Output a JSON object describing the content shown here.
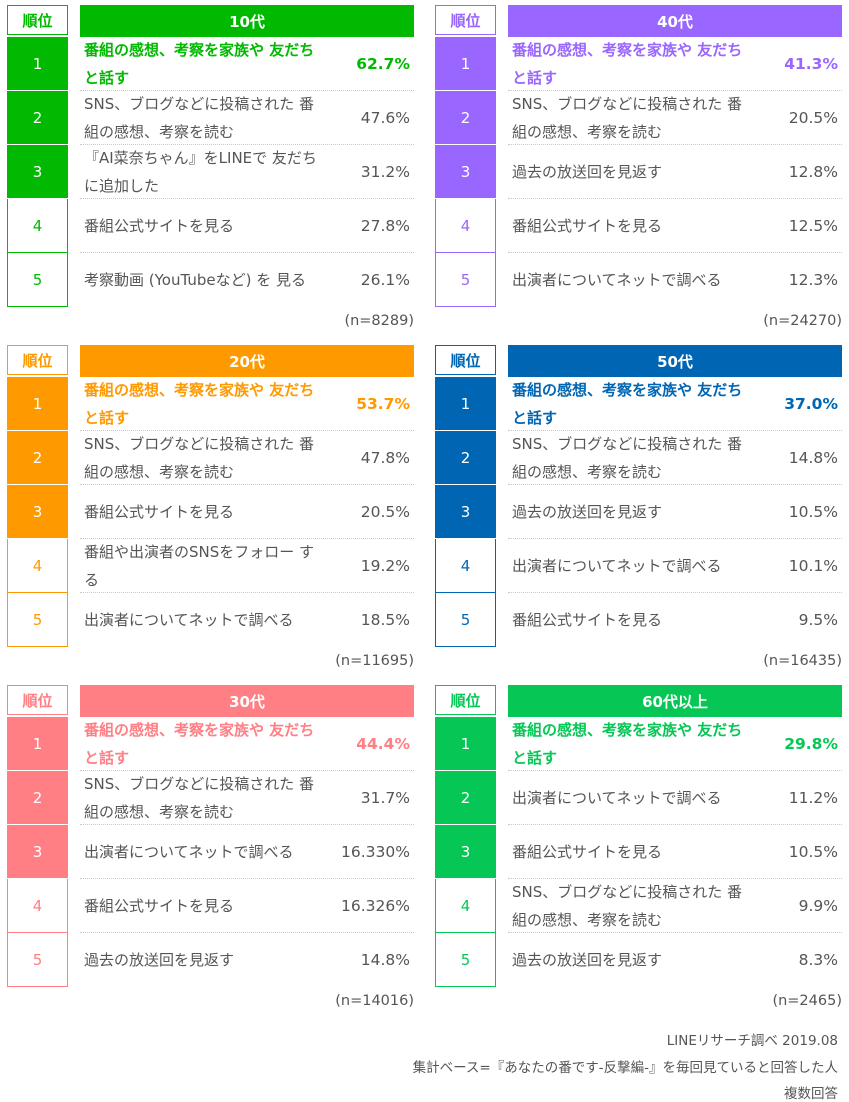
{
  "chart_data": [
    {
      "type": "table",
      "rank_header": "順位",
      "title": "10代",
      "color": "#00b900",
      "n": "(n=8289)",
      "rows": [
        {
          "rank": "1",
          "label": "番組の感想、考察を家族や 友だちと話す",
          "value": "62.7%"
        },
        {
          "rank": "2",
          "label": "SNS、ブログなどに投稿された 番組の感想、考察を読む",
          "value": "47.6%"
        },
        {
          "rank": "3",
          "label": "『AI菜奈ちゃん』をLINEで 友だちに追加した",
          "value": "31.2%"
        },
        {
          "rank": "4",
          "label": "番組公式サイトを見る",
          "value": "27.8%"
        },
        {
          "rank": "5",
          "label": "考察動画 (YouTubeなど) を 見る",
          "value": "26.1%"
        }
      ]
    },
    {
      "type": "table",
      "rank_header": "順位",
      "title": "40代",
      "color": "#9966ff",
      "n": "(n=24270)",
      "rows": [
        {
          "rank": "1",
          "label": "番組の感想、考察を家族や 友だちと話す",
          "value": "41.3%"
        },
        {
          "rank": "2",
          "label": "SNS、ブログなどに投稿された 番組の感想、考察を読む",
          "value": "20.5%"
        },
        {
          "rank": "3",
          "label": "過去の放送回を見返す",
          "value": "12.8%"
        },
        {
          "rank": "4",
          "label": "番組公式サイトを見る",
          "value": "12.5%"
        },
        {
          "rank": "5",
          "label": "出演者についてネットで調べる",
          "value": "12.3%"
        }
      ]
    },
    {
      "type": "table",
      "rank_header": "順位",
      "title": "20代",
      "color": "#ff9900",
      "n": "(n=11695)",
      "rows": [
        {
          "rank": "1",
          "label": "番組の感想、考察を家族や 友だちと話す",
          "value": "53.7%"
        },
        {
          "rank": "2",
          "label": "SNS、ブログなどに投稿された 番組の感想、考察を読む",
          "value": "47.8%"
        },
        {
          "rank": "3",
          "label": "番組公式サイトを見る",
          "value": "20.5%"
        },
        {
          "rank": "4",
          "label": "番組や出演者のSNSをフォロー する",
          "value": "19.2%"
        },
        {
          "rank": "5",
          "label": "出演者についてネットで調べる",
          "value": "18.5%"
        }
      ]
    },
    {
      "type": "table",
      "rank_header": "順位",
      "title": "50代",
      "color": "#0066b3",
      "n": "(n=16435)",
      "rows": [
        {
          "rank": "1",
          "label": "番組の感想、考察を家族や 友だちと話す",
          "value": "37.0%"
        },
        {
          "rank": "2",
          "label": "SNS、ブログなどに投稿された 番組の感想、考察を読む",
          "value": "14.8%"
        },
        {
          "rank": "3",
          "label": "過去の放送回を見返す",
          "value": "10.5%"
        },
        {
          "rank": "4",
          "label": "出演者についてネットで調べる",
          "value": "10.1%"
        },
        {
          "rank": "5",
          "label": "番組公式サイトを見る",
          "value": "9.5%"
        }
      ]
    },
    {
      "type": "table",
      "rank_header": "順位",
      "title": "30代",
      "color": "#ff7f85",
      "n": "(n=14016)",
      "rows": [
        {
          "rank": "1",
          "label": "番組の感想、考察を家族や 友だちと話す",
          "value": "44.4%"
        },
        {
          "rank": "2",
          "label": "SNS、ブログなどに投稿された 番組の感想、考察を読む",
          "value": "31.7%"
        },
        {
          "rank": "3",
          "label": "出演者についてネットで調べる",
          "value": "16.330%"
        },
        {
          "rank": "4",
          "label": "番組公式サイトを見る",
          "value": "16.326%"
        },
        {
          "rank": "5",
          "label": "過去の放送回を見返す",
          "value": "14.8%"
        }
      ]
    },
    {
      "type": "table",
      "rank_header": "順位",
      "title": "60代以上",
      "color": "#06c755",
      "n": "(n=2465)",
      "rows": [
        {
          "rank": "1",
          "label": "番組の感想、考察を家族や 友だちと話す",
          "value": "29.8%"
        },
        {
          "rank": "2",
          "label": "出演者についてネットで調べる",
          "value": "11.2%"
        },
        {
          "rank": "3",
          "label": "番組公式サイトを見る",
          "value": "10.5%"
        },
        {
          "rank": "4",
          "label": "SNS、ブログなどに投稿された 番組の感想、考察を読む",
          "value": "9.9%"
        },
        {
          "rank": "5",
          "label": "過去の放送回を見返す",
          "value": "8.3%"
        }
      ]
    }
  ],
  "footer": {
    "source": "LINEリサーチ調べ 2019.08",
    "base": "集計ベース=『あなたの番です-反撃編-』を毎回見ていると回答した人",
    "note": "複数回答"
  }
}
